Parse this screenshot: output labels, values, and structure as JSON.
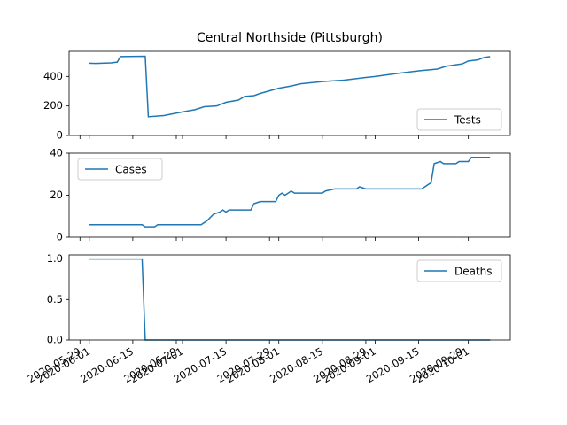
{
  "chart_data": [
    {
      "type": "line",
      "title": "Central Northside (Pittsburgh)",
      "x": [
        "2020-06-01",
        "2020-06-03",
        "2020-06-08",
        "2020-06-10",
        "2020-06-11",
        "2020-06-19",
        "2020-06-20",
        "2020-06-25",
        "2020-07-01",
        "2020-07-05",
        "2020-07-08",
        "2020-07-12",
        "2020-07-15",
        "2020-07-19",
        "2020-07-21",
        "2020-07-24",
        "2020-07-26",
        "2020-08-01",
        "2020-08-05",
        "2020-08-08",
        "2020-08-15",
        "2020-08-22",
        "2020-08-29",
        "2020-09-01",
        "2020-09-08",
        "2020-09-15",
        "2020-09-21",
        "2020-09-24",
        "2020-09-29",
        "2020-10-01",
        "2020-10-04",
        "2020-10-06",
        "2020-10-08"
      ],
      "series": [
        {
          "name": "Tests",
          "color": "#1f77b4",
          "values": [
            490,
            488,
            492,
            497,
            535,
            537,
            127,
            135,
            160,
            175,
            195,
            200,
            225,
            240,
            265,
            270,
            285,
            320,
            335,
            350,
            365,
            375,
            393,
            400,
            420,
            438,
            450,
            470,
            485,
            505,
            512,
            528,
            535
          ]
        }
      ],
      "xlim": [
        "2020-05-25T12:00",
        "2020-10-14T12:00"
      ],
      "ylim": [
        0,
        570
      ],
      "yticks": [
        0,
        200,
        400
      ],
      "legend": "lower right"
    },
    {
      "type": "line",
      "x": [
        "2020-06-01",
        "2020-06-18",
        "2020-06-19",
        "2020-06-22",
        "2020-06-23",
        "2020-07-07",
        "2020-07-09",
        "2020-07-11",
        "2020-07-13",
        "2020-07-14",
        "2020-07-15",
        "2020-07-16",
        "2020-07-23",
        "2020-07-24",
        "2020-07-26",
        "2020-07-31",
        "2020-08-01",
        "2020-08-02",
        "2020-08-03",
        "2020-08-05",
        "2020-08-06",
        "2020-08-15",
        "2020-08-16",
        "2020-08-19",
        "2020-08-26",
        "2020-08-27",
        "2020-08-29",
        "2020-09-16",
        "2020-09-18",
        "2020-09-19",
        "2020-09-20",
        "2020-09-22",
        "2020-09-23",
        "2020-09-27",
        "2020-09-28",
        "2020-10-01",
        "2020-10-02",
        "2020-10-08"
      ],
      "series": [
        {
          "name": "Cases",
          "color": "#1f77b4",
          "values": [
            6,
            6,
            5,
            5,
            6,
            6,
            8,
            11,
            12,
            13,
            12,
            13,
            13,
            16,
            17,
            17,
            20,
            21,
            20,
            22,
            21,
            21,
            22,
            23,
            23,
            24,
            23,
            23,
            25,
            26,
            35,
            36,
            35,
            35,
            36,
            36,
            38,
            38
          ]
        }
      ],
      "xlim": [
        "2020-05-25T12:00",
        "2020-10-14T12:00"
      ],
      "ylim": [
        0,
        40
      ],
      "yticks": [
        0,
        20,
        40
      ],
      "legend": "upper left"
    },
    {
      "type": "line",
      "x": [
        "2020-06-01",
        "2020-06-18",
        "2020-06-19",
        "2020-10-08"
      ],
      "series": [
        {
          "name": "Deaths",
          "color": "#1f77b4",
          "values": [
            1,
            1,
            0,
            0
          ]
        }
      ],
      "xlim": [
        "2020-05-25T12:00",
        "2020-10-14T12:00"
      ],
      "ylim": [
        0,
        1.05
      ],
      "yticks": [
        {
          "value": 0,
          "label": "0.0"
        },
        {
          "value": 0.5,
          "label": "0.5"
        },
        {
          "value": 1,
          "label": "1.0"
        }
      ],
      "xticks": [
        "2020-05-29",
        "2020-06-01",
        "2020-06-15",
        "2020-06-29",
        "2020-07-01",
        "2020-07-15",
        "2020-07-29",
        "2020-08-01",
        "2020-08-15",
        "2020-08-29",
        "2020-09-01",
        "2020-09-15",
        "2020-09-29",
        "2020-10-01"
      ],
      "legend": "upper right"
    }
  ]
}
